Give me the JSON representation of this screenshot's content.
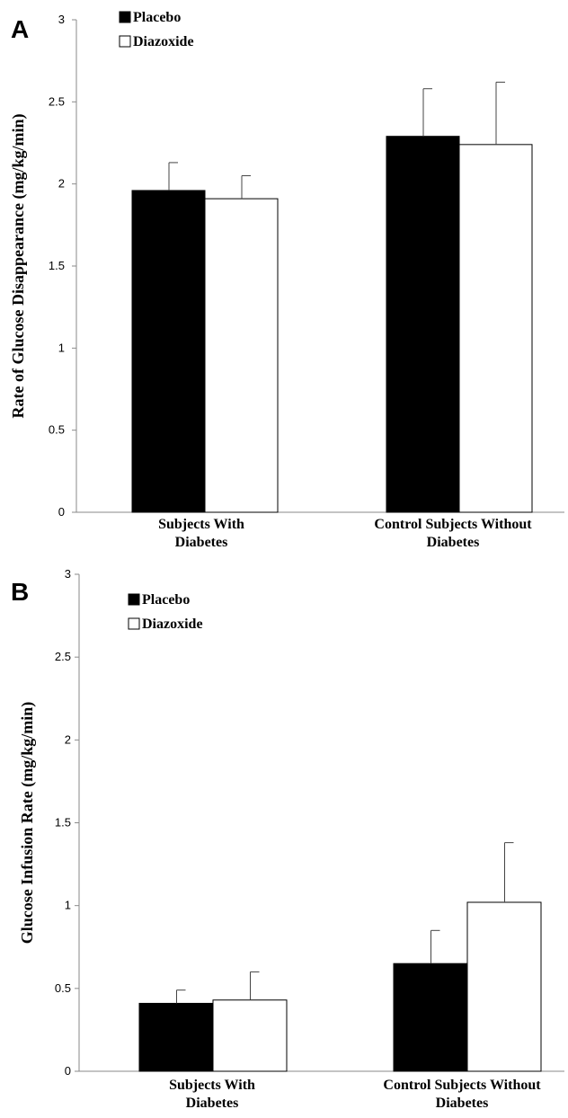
{
  "chart_data": [
    {
      "panel": "A",
      "type": "bar",
      "ylabel": "Rate of Glucose Disappearance (mg/kg/min)",
      "xlabel": "",
      "ylim": [
        0,
        3
      ],
      "yticks": [
        0,
        0.5,
        1,
        1.5,
        2,
        2.5,
        3
      ],
      "ytick_labels": [
        "0",
        "0.5",
        "1",
        "1.5",
        "2",
        "2.5",
        "3"
      ],
      "grid": false,
      "legend_position": "top-left",
      "categories": [
        [
          "Subjects With",
          "Diabetes"
        ],
        [
          "Control Subjects Without",
          "Diabetes"
        ]
      ],
      "series": [
        {
          "name": "Placebo",
          "color": "#000000",
          "values": [
            1.96,
            2.29
          ],
          "errors": [
            0.17,
            0.29
          ]
        },
        {
          "name": "Diazoxide",
          "color": "#ffffff",
          "values": [
            1.91,
            2.24
          ],
          "errors": [
            0.14,
            0.38
          ]
        }
      ]
    },
    {
      "panel": "B",
      "type": "bar",
      "ylabel": "Glucose Infusion Rate (mg/kg/min)",
      "xlabel": "",
      "ylim": [
        0,
        3
      ],
      "yticks": [
        0,
        0.5,
        1,
        1.5,
        2,
        2.5,
        3
      ],
      "ytick_labels": [
        "0",
        "0.5",
        "1",
        "1.5",
        "2",
        "2.5",
        "3"
      ],
      "grid": false,
      "legend_position": "top-left",
      "categories": [
        [
          "Subjects With",
          "Diabetes"
        ],
        [
          "Control Subjects Without",
          "Diabetes"
        ]
      ],
      "series": [
        {
          "name": "Placebo",
          "color": "#000000",
          "values": [
            0.41,
            0.65
          ],
          "errors": [
            0.08,
            0.2
          ]
        },
        {
          "name": "Diazoxide",
          "color": "#ffffff",
          "values": [
            0.43,
            1.02
          ],
          "errors": [
            0.17,
            0.36
          ]
        }
      ]
    }
  ]
}
